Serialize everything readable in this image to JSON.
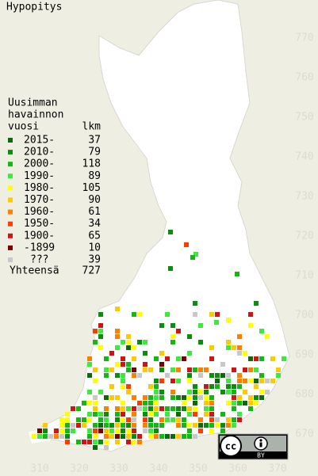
{
  "title": "Hypopitys",
  "legend": {
    "header": [
      "Uusimman",
      "havainnon",
      "vuosi"
    ],
    "count_header": "lkm",
    "items": [
      {
        "label": "2015-",
        "count": 37,
        "color": "#0b6b0b"
      },
      {
        "label": "2010-",
        "count": 79,
        "color": "#0a8f0a"
      },
      {
        "label": "2000-",
        "count": 118,
        "color": "#14b814"
      },
      {
        "label": "1990-",
        "count": 89,
        "color": "#3ee83e"
      },
      {
        "label": "1980-",
        "count": 105,
        "color": "#ffff00"
      },
      {
        "label": "1970-",
        "count": 90,
        "color": "#ffc800"
      },
      {
        "label": "1960-",
        "count": 61,
        "color": "#ff7f00"
      },
      {
        "label": "1950-",
        "count": 34,
        "color": "#ff3c00"
      },
      {
        "label": "1900-",
        "count": 65,
        "color": "#d01414"
      },
      {
        "label": "-1899",
        "count": 10,
        "color": "#7a0000"
      },
      {
        "label": "???",
        "count": 39,
        "color": "#c8c8c8"
      }
    ],
    "total_label": "Yhteensä",
    "total": 727
  },
  "x_labels": [
    310,
    320,
    330,
    340,
    350,
    360,
    370
  ],
  "y_labels": [
    770,
    760,
    750,
    740,
    730,
    720,
    710,
    700,
    690,
    680,
    670
  ],
  "badge": {
    "cc": "cc",
    "by": "BY"
  }
}
